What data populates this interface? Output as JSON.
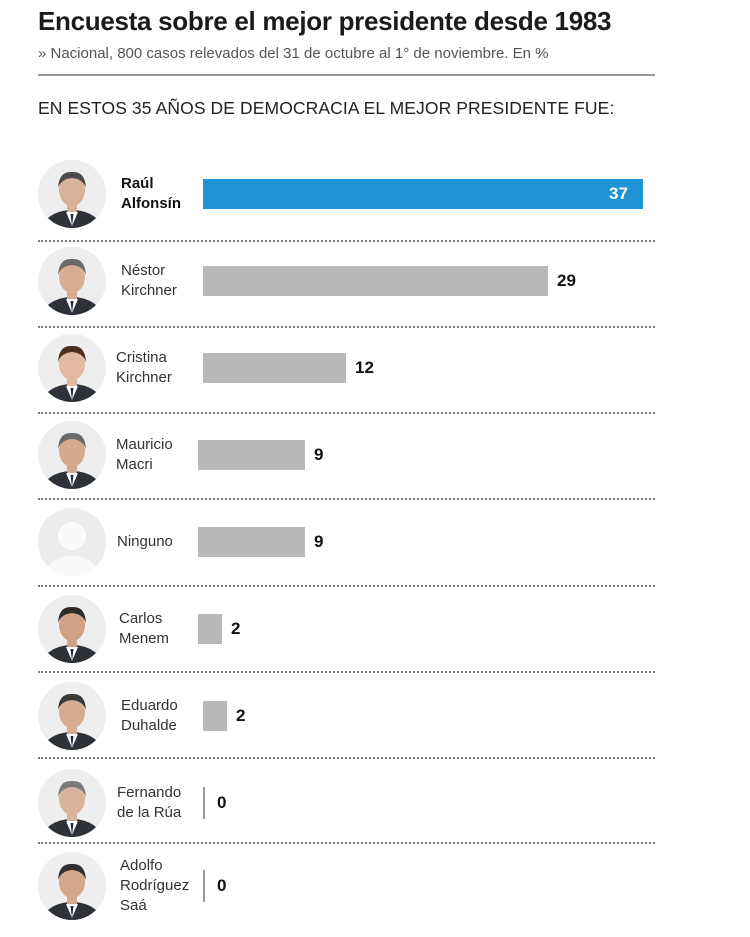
{
  "title": "Encuesta sobre el mejor presidente desde 1983",
  "subtitle": "» Nacional, 800 casos relevados del 31 de octubre al 1° de noviembre. En %",
  "heading": "EN ESTOS 35 AÑOS DE DEMOCRACIA EL MEJOR PRESIDENTE FUE:",
  "colors": {
    "highlight": "#1f93d3",
    "bar": "#b8b8b8"
  },
  "chart_data": {
    "type": "bar",
    "orientation": "horizontal",
    "title": "Encuesta sobre el mejor presidente desde 1983",
    "subtitle": "» Nacional, 800 casos relevados del 31 de octubre al 1° de noviembre. En %",
    "categories": [
      [
        "Raúl",
        "Alfonsín"
      ],
      [
        "Néstor",
        "Kirchner"
      ],
      [
        "Cristina",
        "Kirchner"
      ],
      [
        "Mauricio",
        "Macri"
      ],
      [
        "Ninguno"
      ],
      [
        "Carlos",
        "Menem"
      ],
      [
        "Eduardo",
        "Duhalde"
      ],
      [
        "Fernando",
        "de la Rúa"
      ],
      [
        "Adolfo",
        "Rodríguez",
        "Saá"
      ]
    ],
    "values": [
      37,
      29,
      12,
      9,
      9,
      2,
      2,
      0,
      0
    ],
    "highlight_index": 0,
    "xlim": [
      0,
      37
    ],
    "grid": false,
    "icons": [
      "portrait-icon",
      "portrait-icon",
      "portrait-icon",
      "portrait-icon",
      "person-placeholder-icon",
      "portrait-icon",
      "portrait-icon",
      "portrait-icon",
      "portrait-icon"
    ]
  }
}
